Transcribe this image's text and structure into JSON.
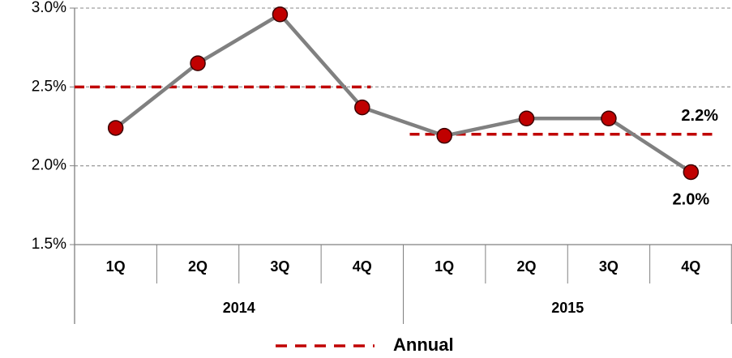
{
  "chart_data": {
    "type": "line",
    "groups": [
      {
        "label": "2014",
        "categories": [
          "1Q",
          "2Q",
          "3Q",
          "4Q"
        ]
      },
      {
        "label": "2015",
        "categories": [
          "1Q",
          "2Q",
          "3Q",
          "4Q"
        ]
      }
    ],
    "series": [
      {
        "color": "#808080",
        "marker_color": "#c00000",
        "values": [
          2.24,
          2.65,
          2.96,
          2.37,
          2.19,
          2.3,
          2.3,
          1.96
        ],
        "value_labels": [
          null,
          null,
          null,
          null,
          null,
          null,
          null,
          "2.0%"
        ]
      }
    ],
    "annual": {
      "name": "Annual",
      "color": "#c00000",
      "values": [
        2.5,
        2.2
      ],
      "value_labels": [
        null,
        "2.2%"
      ]
    },
    "ylim": [
      1.5,
      3.0
    ],
    "yticks": [
      {
        "value": 1.5,
        "label": "1.5%"
      },
      {
        "value": 2.0,
        "label": "2.0%"
      },
      {
        "value": 2.5,
        "label": "2.5%"
      },
      {
        "value": 3.0,
        "label": "3.0%"
      }
    ],
    "grid": true,
    "legend": "bottom"
  }
}
